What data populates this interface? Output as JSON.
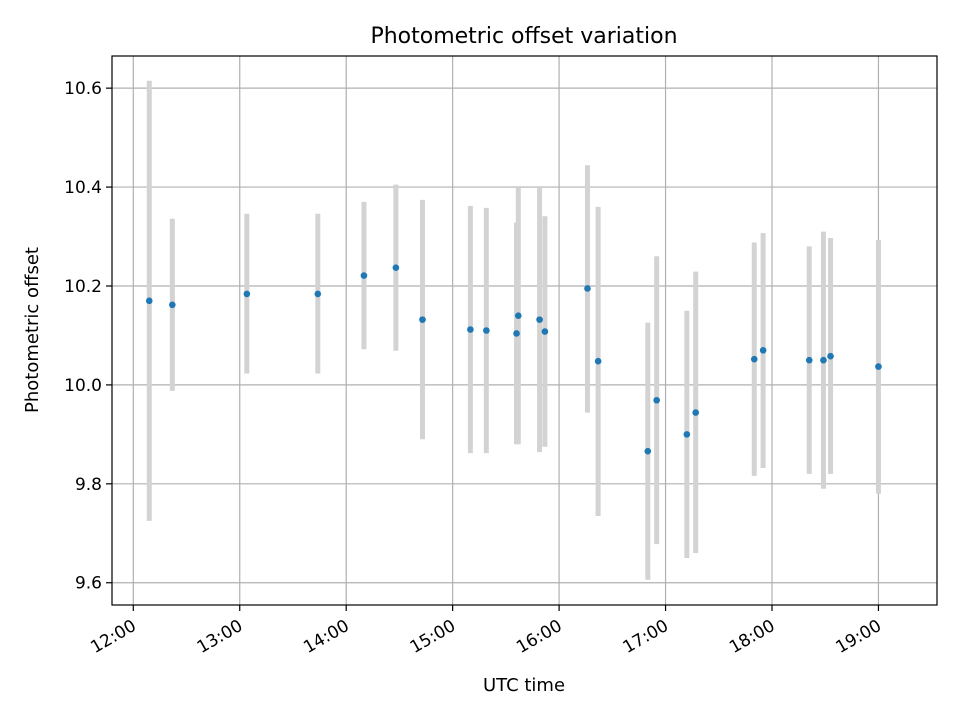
{
  "chart_data": {
    "type": "scatter",
    "title": "Photometric offset variation",
    "xlabel": "UTC time",
    "ylabel": "Photometric offset",
    "x_is_time": true,
    "xlim": [
      "11:48",
      "19:33"
    ],
    "ylim": [
      9.555,
      10.665
    ],
    "xticks": [
      "12:00",
      "13:00",
      "14:00",
      "15:00",
      "16:00",
      "17:00",
      "18:00",
      "19:00"
    ],
    "yticks": [
      9.6,
      9.8,
      10.0,
      10.2,
      10.4,
      10.6
    ],
    "ytick_labels": [
      "9.6",
      "9.8",
      "10.0",
      "10.2",
      "10.4",
      "10.6"
    ],
    "grid": true,
    "marker_color": "#1f77b4",
    "errorbar_color": "#d3d3d3",
    "points": [
      {
        "t": "12:09",
        "y": 10.17,
        "lo": 9.725,
        "hi": 10.615
      },
      {
        "t": "12:22",
        "y": 10.162,
        "lo": 9.988,
        "hi": 10.336
      },
      {
        "t": "13:04",
        "y": 10.184,
        "lo": 10.023,
        "hi": 10.346
      },
      {
        "t": "13:44",
        "y": 10.184,
        "lo": 10.023,
        "hi": 10.346
      },
      {
        "t": "14:10",
        "y": 10.221,
        "lo": 10.072,
        "hi": 10.37
      },
      {
        "t": "14:28",
        "y": 10.237,
        "lo": 10.069,
        "hi": 10.405
      },
      {
        "t": "14:43",
        "y": 10.132,
        "lo": 9.89,
        "hi": 10.374
      },
      {
        "t": "15:10",
        "y": 10.112,
        "lo": 9.862,
        "hi": 10.362
      },
      {
        "t": "15:19",
        "y": 10.11,
        "lo": 9.862,
        "hi": 10.358
      },
      {
        "t": "15:36",
        "y": 10.104,
        "lo": 9.88,
        "hi": 10.328
      },
      {
        "t": "15:37",
        "y": 10.14,
        "lo": 9.88,
        "hi": 10.4
      },
      {
        "t": "15:49",
        "y": 10.132,
        "lo": 9.864,
        "hi": 10.4
      },
      {
        "t": "15:52",
        "y": 10.108,
        "lo": 9.875,
        "hi": 10.341
      },
      {
        "t": "16:16",
        "y": 10.195,
        "lo": 9.944,
        "hi": 10.444
      },
      {
        "t": "16:22",
        "y": 10.048,
        "lo": 9.735,
        "hi": 10.36
      },
      {
        "t": "16:50",
        "y": 9.866,
        "lo": 9.606,
        "hi": 10.126
      },
      {
        "t": "16:55",
        "y": 9.969,
        "lo": 9.678,
        "hi": 10.26
      },
      {
        "t": "17:12",
        "y": 9.9,
        "lo": 9.65,
        "hi": 10.15
      },
      {
        "t": "17:17",
        "y": 9.944,
        "lo": 9.66,
        "hi": 10.229
      },
      {
        "t": "17:50",
        "y": 10.052,
        "lo": 9.816,
        "hi": 10.288
      },
      {
        "t": "17:55",
        "y": 10.07,
        "lo": 9.832,
        "hi": 10.307
      },
      {
        "t": "18:21",
        "y": 10.05,
        "lo": 9.82,
        "hi": 10.28
      },
      {
        "t": "18:29",
        "y": 10.05,
        "lo": 9.79,
        "hi": 10.31
      },
      {
        "t": "18:33",
        "y": 10.058,
        "lo": 9.82,
        "hi": 10.297
      },
      {
        "t": "19:00",
        "y": 10.037,
        "lo": 9.78,
        "hi": 10.293
      }
    ]
  }
}
